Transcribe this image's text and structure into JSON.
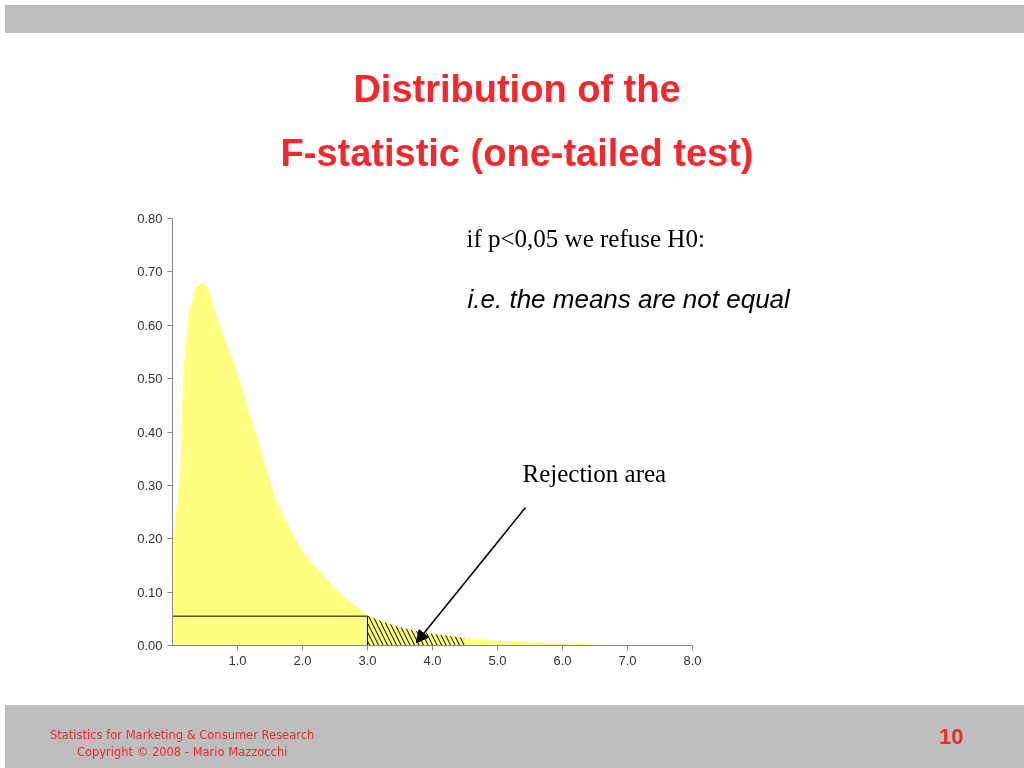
{
  "chart_data": {
    "type": "area",
    "title": "Distribution of the\nF-statistic (one-tailed test)",
    "x": [
      0.02,
      0.08,
      0.12,
      0.15,
      0.18,
      0.25,
      0.35,
      0.46,
      0.55,
      0.7,
      0.85,
      1.0,
      1.15,
      1.3,
      1.45,
      1.6,
      1.8,
      2.0,
      2.25,
      2.5,
      2.75,
      3.0,
      3.25,
      3.5,
      3.75,
      4.0,
      4.5,
      5.0,
      5.5,
      6.0,
      6.5,
      7.0
    ],
    "series": [
      {
        "color": "#ffff80",
        "values": [
          0.2,
          0.28,
          0.33,
          0.45,
          0.53,
          0.62,
          0.67,
          0.68,
          0.67,
          0.61,
          0.56,
          0.51,
          0.45,
          0.39,
          0.33,
          0.27,
          0.22,
          0.175,
          0.14,
          0.107,
          0.08,
          0.056,
          0.044,
          0.034,
          0.027,
          0.022,
          0.014,
          0.009,
          0.006,
          0.004,
          0.002,
          0.0
        ]
      },
      {
        "type": "line",
        "color": "#000000",
        "x": [
          0.0,
          3.0,
          3.0
        ],
        "values": [
          0.055,
          0.055,
          0.0
        ]
      },
      {
        "type": "area",
        "color": "#000000",
        "x": [
          3.0,
          3.25,
          3.5,
          3.75,
          4.0,
          4.5
        ],
        "values": [
          0.056,
          0.044,
          0.034,
          0.027,
          0.022,
          0.014
        ]
      }
    ],
    "xlim": [
      0,
      8
    ],
    "ylim": [
      0,
      0.8
    ],
    "xticks": [
      {
        "value": 1,
        "label": "1.0"
      },
      {
        "value": 2,
        "label": "2.0"
      },
      {
        "value": 3,
        "label": "3.0"
      },
      {
        "value": 4,
        "label": "4.0"
      },
      {
        "value": 5,
        "label": "5.0"
      },
      {
        "value": 6,
        "label": "6.0"
      },
      {
        "value": 7,
        "label": "7.0"
      },
      {
        "value": 8,
        "label": "8.0"
      }
    ],
    "yticks": [
      {
        "value": 0,
        "label": "0.00"
      },
      {
        "value": 0.1,
        "label": "0.10"
      },
      {
        "value": 0.2,
        "label": "0.20"
      },
      {
        "value": 0.3,
        "label": "0.30"
      },
      {
        "value": 0.4,
        "label": "0.40"
      },
      {
        "value": 0.5,
        "label": "0.50"
      },
      {
        "value": 0.6,
        "label": "0.60"
      },
      {
        "value": 0.7,
        "label": "0.70"
      },
      {
        "value": 0.8,
        "label": "0.80"
      }
    ],
    "annotations": [
      "if  p<0,05 we refuse H0:",
      "i.e. the means are not equal",
      {
        "text": "Rejection area",
        "x": 3.75,
        "y": 0.005
      },
      "Statistics for Marketing & Consumer Research",
      "Copyright © 2008 - Mario Mazzocchi",
      "10"
    ],
    "grid": false
  }
}
